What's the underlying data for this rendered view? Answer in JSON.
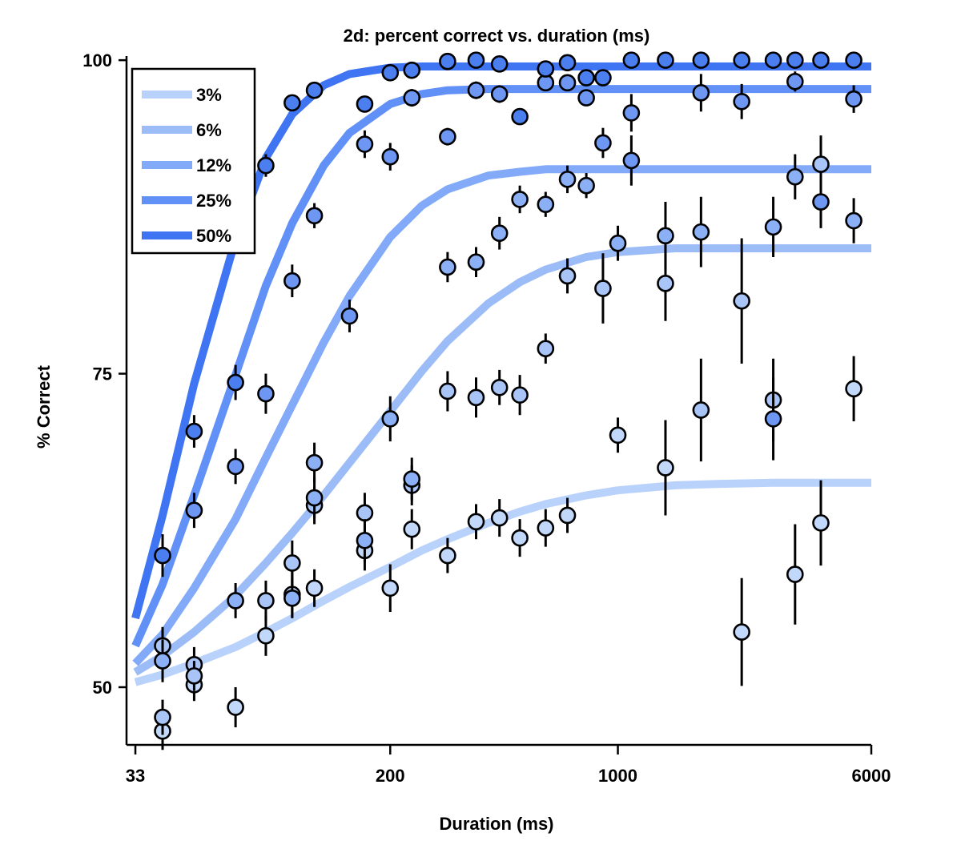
{
  "chart_data": {
    "type": "scatter",
    "title": "2d: percent correct vs. duration (ms)",
    "xlabel": "Duration (ms)",
    "ylabel": "% Correct",
    "x_scale": "log",
    "xlim": [
      31,
      6000
    ],
    "ylim": [
      45.4,
      100.2
    ],
    "x_ticks": [
      33,
      200,
      1000,
      6000
    ],
    "x_tick_labels": [
      "33",
      "200",
      "1000",
      "6000"
    ],
    "y_ticks": [
      50,
      75,
      100
    ],
    "y_tick_labels": [
      "50",
      "75",
      "100"
    ],
    "grid": false,
    "legend_position": "top-left",
    "series": [
      {
        "name": "3%",
        "color": "#c2d8fa",
        "fit_color": "#b9d2fb",
        "points": [
          {
            "x": 40,
            "y": 46.5,
            "err": 1.5
          },
          {
            "x": 50,
            "y": 50.2,
            "err": 1.3
          },
          {
            "x": 67,
            "y": 48.4,
            "err": 1.6
          },
          {
            "x": 83,
            "y": 54.1,
            "err": 1.6
          },
          {
            "x": 100,
            "y": 57.4,
            "err": 1.8
          },
          {
            "x": 117,
            "y": 57.9,
            "err": 1.5
          },
          {
            "x": 167,
            "y": 60.9,
            "err": 1.6
          },
          {
            "x": 200,
            "y": 57.9,
            "err": 1.9
          },
          {
            "x": 233,
            "y": 62.6,
            "err": 1.6
          },
          {
            "x": 300,
            "y": 60.5,
            "err": 1.4
          },
          {
            "x": 367,
            "y": 63.2,
            "err": 1.4
          },
          {
            "x": 433,
            "y": 63.5,
            "err": 1.5
          },
          {
            "x": 500,
            "y": 61.9,
            "err": 1.5
          },
          {
            "x": 600,
            "y": 62.7,
            "err": 1.5
          },
          {
            "x": 700,
            "y": 63.7,
            "err": 1.4
          },
          {
            "x": 1000,
            "y": 70.1,
            "err": 1.4
          },
          {
            "x": 1400,
            "y": 67.5,
            "err": 3.8
          },
          {
            "x": 2400,
            "y": 54.4,
            "err": 4.3
          },
          {
            "x": 3500,
            "y": 59.0,
            "err": 4.0
          },
          {
            "x": 4200,
            "y": 63.1,
            "err": 3.4
          },
          {
            "x": 5300,
            "y": 73.8,
            "err": 2.6
          }
        ],
        "fit": [
          {
            "x": 33,
            "y": 50.4
          },
          {
            "x": 40,
            "y": 51.0
          },
          {
            "x": 50,
            "y": 51.9
          },
          {
            "x": 67,
            "y": 53.2
          },
          {
            "x": 83,
            "y": 54.4
          },
          {
            "x": 100,
            "y": 55.5
          },
          {
            "x": 125,
            "y": 56.9
          },
          {
            "x": 150,
            "y": 58.0
          },
          {
            "x": 200,
            "y": 59.6
          },
          {
            "x": 250,
            "y": 60.9
          },
          {
            "x": 300,
            "y": 61.8
          },
          {
            "x": 400,
            "y": 63.1
          },
          {
            "x": 500,
            "y": 64.0
          },
          {
            "x": 600,
            "y": 64.6
          },
          {
            "x": 800,
            "y": 65.3
          },
          {
            "x": 1000,
            "y": 65.7
          },
          {
            "x": 1500,
            "y": 66.1
          },
          {
            "x": 2000,
            "y": 66.2
          },
          {
            "x": 3000,
            "y": 66.3
          },
          {
            "x": 4000,
            "y": 66.3
          },
          {
            "x": 6000,
            "y": 66.3
          }
        ]
      },
      {
        "name": "6%",
        "color": "#a9c4f7",
        "fit_color": "#9cbcf8",
        "points": [
          {
            "x": 40,
            "y": 47.6,
            "err": 1.4
          },
          {
            "x": 40,
            "y": 53.3,
            "err": 1.5
          },
          {
            "x": 50,
            "y": 51.8,
            "err": 1.4
          },
          {
            "x": 50,
            "y": 50.9,
            "err": 1.2
          },
          {
            "x": 83,
            "y": 56.9,
            "err": 1.6
          },
          {
            "x": 100,
            "y": 59.9,
            "err": 1.8
          },
          {
            "x": 117,
            "y": 64.5,
            "err": 1.5
          },
          {
            "x": 167,
            "y": 63.9,
            "err": 1.6
          },
          {
            "x": 233,
            "y": 66.1,
            "err": 1.6
          },
          {
            "x": 300,
            "y": 73.6,
            "err": 1.6
          },
          {
            "x": 367,
            "y": 73.1,
            "err": 1.6
          },
          {
            "x": 433,
            "y": 73.9,
            "err": 1.4
          },
          {
            "x": 500,
            "y": 73.3,
            "err": 1.6
          },
          {
            "x": 600,
            "y": 77.0,
            "err": 1.2
          },
          {
            "x": 700,
            "y": 82.8,
            "err": 1.4
          },
          {
            "x": 900,
            "y": 81.8,
            "err": 2.8
          },
          {
            "x": 1400,
            "y": 82.2,
            "err": 3.0
          },
          {
            "x": 1800,
            "y": 72.1,
            "err": 4.1
          },
          {
            "x": 2400,
            "y": 80.8,
            "err": 5.0
          },
          {
            "x": 3000,
            "y": 72.9,
            "err": 3.3
          },
          {
            "x": 4200,
            "y": 91.7,
            "err": 2.3
          }
        ],
        "fit": [
          {
            "x": 33,
            "y": 51.2
          },
          {
            "x": 40,
            "y": 52.5
          },
          {
            "x": 50,
            "y": 54.4
          },
          {
            "x": 67,
            "y": 57.3
          },
          {
            "x": 83,
            "y": 59.9
          },
          {
            "x": 100,
            "y": 62.3
          },
          {
            "x": 125,
            "y": 65.3
          },
          {
            "x": 150,
            "y": 67.9
          },
          {
            "x": 200,
            "y": 72.0
          },
          {
            "x": 250,
            "y": 75.2
          },
          {
            "x": 300,
            "y": 77.6
          },
          {
            "x": 400,
            "y": 80.6
          },
          {
            "x": 500,
            "y": 82.3
          },
          {
            "x": 600,
            "y": 83.3
          },
          {
            "x": 800,
            "y": 84.3
          },
          {
            "x": 1000,
            "y": 84.7
          },
          {
            "x": 1500,
            "y": 85.0
          },
          {
            "x": 2000,
            "y": 85.0
          },
          {
            "x": 3000,
            "y": 85.0
          },
          {
            "x": 4000,
            "y": 85.0
          },
          {
            "x": 6000,
            "y": 85.0
          }
        ]
      },
      {
        "name": "12%",
        "color": "#8cb0f5",
        "fit_color": "#82aaf8",
        "points": [
          {
            "x": 40,
            "y": 52.1,
            "err": 1.7
          },
          {
            "x": 67,
            "y": 56.9,
            "err": 1.4
          },
          {
            "x": 100,
            "y": 57.1,
            "err": 1.6
          },
          {
            "x": 117,
            "y": 65.1,
            "err": 1.6
          },
          {
            "x": 117,
            "y": 67.9,
            "err": 1.6
          },
          {
            "x": 167,
            "y": 61.7,
            "err": 1.7
          },
          {
            "x": 200,
            "y": 71.4,
            "err": 1.8
          },
          {
            "x": 233,
            "y": 66.6,
            "err": 1.7
          },
          {
            "x": 300,
            "y": 83.5,
            "err": 1.2
          },
          {
            "x": 367,
            "y": 83.9,
            "err": 1.2
          },
          {
            "x": 433,
            "y": 86.2,
            "err": 1.3
          },
          {
            "x": 500,
            "y": 88.9,
            "err": 1.1
          },
          {
            "x": 600,
            "y": 88.5,
            "err": 1.0
          },
          {
            "x": 700,
            "y": 90.5,
            "err": 1.1
          },
          {
            "x": 800,
            "y": 90.0,
            "err": 1.0
          },
          {
            "x": 1000,
            "y": 85.4,
            "err": 1.4
          },
          {
            "x": 1400,
            "y": 86.0,
            "err": 2.7
          },
          {
            "x": 1800,
            "y": 86.3,
            "err": 2.8
          },
          {
            "x": 3000,
            "y": 86.7,
            "err": 2.4
          },
          {
            "x": 3500,
            "y": 90.7,
            "err": 1.8
          },
          {
            "x": 5300,
            "y": 87.2,
            "err": 1.8
          }
        ],
        "fit": [
          {
            "x": 33,
            "y": 51.9
          },
          {
            "x": 40,
            "y": 54.2
          },
          {
            "x": 50,
            "y": 57.9
          },
          {
            "x": 67,
            "y": 63.4
          },
          {
            "x": 83,
            "y": 68.3
          },
          {
            "x": 100,
            "y": 72.5
          },
          {
            "x": 125,
            "y": 77.5
          },
          {
            "x": 150,
            "y": 81.2
          },
          {
            "x": 200,
            "y": 85.9
          },
          {
            "x": 250,
            "y": 88.4
          },
          {
            "x": 300,
            "y": 89.7
          },
          {
            "x": 400,
            "y": 90.8
          },
          {
            "x": 500,
            "y": 91.1
          },
          {
            "x": 600,
            "y": 91.3
          },
          {
            "x": 800,
            "y": 91.3
          },
          {
            "x": 1000,
            "y": 91.3
          },
          {
            "x": 1500,
            "y": 91.3
          },
          {
            "x": 2000,
            "y": 91.3
          },
          {
            "x": 3000,
            "y": 91.3
          },
          {
            "x": 4000,
            "y": 91.3
          },
          {
            "x": 6000,
            "y": 91.3
          }
        ]
      },
      {
        "name": "25%",
        "color": "#6d97f2",
        "fit_color": "#6190f7",
        "points": [
          {
            "x": 50,
            "y": 64.1,
            "err": 1.4
          },
          {
            "x": 67,
            "y": 67.6,
            "err": 1.4
          },
          {
            "x": 83,
            "y": 73.4,
            "err": 1.6
          },
          {
            "x": 100,
            "y": 82.4,
            "err": 1.3
          },
          {
            "x": 117,
            "y": 87.6,
            "err": 1.0
          },
          {
            "x": 150,
            "y": 79.6,
            "err": 1.3
          },
          {
            "x": 167,
            "y": 93.3,
            "err": 1.1
          },
          {
            "x": 200,
            "y": 92.3,
            "err": 1.1
          },
          {
            "x": 233,
            "y": 97.0,
            "err": 0.7
          },
          {
            "x": 300,
            "y": 93.9,
            "err": 0.7
          },
          {
            "x": 367,
            "y": 97.6,
            "err": 0.7
          },
          {
            "x": 433,
            "y": 97.3,
            "err": 0.7
          },
          {
            "x": 600,
            "y": 98.2,
            "err": 0.6
          },
          {
            "x": 700,
            "y": 98.2,
            "err": 0.6
          },
          {
            "x": 800,
            "y": 97.0,
            "err": 0.6
          },
          {
            "x": 900,
            "y": 93.4,
            "err": 1.2
          },
          {
            "x": 1100,
            "y": 95.8,
            "err": 1.5
          },
          {
            "x": 1100,
            "y": 92.0,
            "err": 2.0
          },
          {
            "x": 1800,
            "y": 97.4,
            "err": 1.5
          },
          {
            "x": 2400,
            "y": 96.7,
            "err": 1.4
          },
          {
            "x": 3000,
            "y": 71.4,
            "err": 3.3
          },
          {
            "x": 3500,
            "y": 98.3,
            "err": 0.8
          },
          {
            "x": 4200,
            "y": 88.7,
            "err": 2.1
          },
          {
            "x": 5300,
            "y": 96.9,
            "err": 1.1
          }
        ],
        "fit": [
          {
            "x": 33,
            "y": 53.3
          },
          {
            "x": 40,
            "y": 58.2
          },
          {
            "x": 50,
            "y": 65.3
          },
          {
            "x": 67,
            "y": 74.9
          },
          {
            "x": 83,
            "y": 82.0
          },
          {
            "x": 100,
            "y": 87.0
          },
          {
            "x": 125,
            "y": 91.6
          },
          {
            "x": 150,
            "y": 94.2
          },
          {
            "x": 200,
            "y": 96.5
          },
          {
            "x": 250,
            "y": 97.3
          },
          {
            "x": 300,
            "y": 97.6
          },
          {
            "x": 400,
            "y": 97.7
          },
          {
            "x": 500,
            "y": 97.7
          },
          {
            "x": 600,
            "y": 97.7
          },
          {
            "x": 800,
            "y": 97.7
          },
          {
            "x": 1000,
            "y": 97.7
          },
          {
            "x": 1500,
            "y": 97.7
          },
          {
            "x": 2000,
            "y": 97.7
          },
          {
            "x": 3000,
            "y": 97.7
          },
          {
            "x": 4000,
            "y": 97.7
          },
          {
            "x": 6000,
            "y": 97.7
          }
        ]
      },
      {
        "name": "50%",
        "color": "#4b7ff0",
        "fit_color": "#3f74f3",
        "points": [
          {
            "x": 40,
            "y": 60.5,
            "err": 1.7
          },
          {
            "x": 50,
            "y": 70.4,
            "err": 1.3
          },
          {
            "x": 67,
            "y": 74.3,
            "err": 1.4
          },
          {
            "x": 83,
            "y": 91.6,
            "err": 0.9
          },
          {
            "x": 100,
            "y": 96.6,
            "err": 0.6
          },
          {
            "x": 117,
            "y": 97.6,
            "err": 0.6
          },
          {
            "x": 167,
            "y": 96.5,
            "err": 0.6
          },
          {
            "x": 200,
            "y": 99.0,
            "err": 0.4
          },
          {
            "x": 233,
            "y": 99.2,
            "err": 0.4
          },
          {
            "x": 300,
            "y": 99.9,
            "err": 0.3
          },
          {
            "x": 367,
            "y": 100.0,
            "err": 0.3
          },
          {
            "x": 433,
            "y": 99.7,
            "err": 0.3
          },
          {
            "x": 500,
            "y": 95.5,
            "err": 0.6
          },
          {
            "x": 600,
            "y": 99.3,
            "err": 0.3
          },
          {
            "x": 700,
            "y": 99.8,
            "err": 0.3
          },
          {
            "x": 800,
            "y": 98.6,
            "err": 0.4
          },
          {
            "x": 900,
            "y": 98.6,
            "err": 0.4
          },
          {
            "x": 1100,
            "y": 100.0,
            "err": 0.2
          },
          {
            "x": 1400,
            "y": 100.0,
            "err": 0.2
          },
          {
            "x": 1800,
            "y": 100.0,
            "err": 0.2
          },
          {
            "x": 2400,
            "y": 100.0,
            "err": 0.2
          },
          {
            "x": 3000,
            "y": 100.0,
            "err": 0.2
          },
          {
            "x": 3500,
            "y": 100.0,
            "err": 0.2
          },
          {
            "x": 4200,
            "y": 100.0,
            "err": 0.2
          },
          {
            "x": 5300,
            "y": 100.0,
            "err": 0.2
          }
        ],
        "fit": [
          {
            "x": 33,
            "y": 55.5
          },
          {
            "x": 40,
            "y": 63.7
          },
          {
            "x": 50,
            "y": 74.2
          },
          {
            "x": 67,
            "y": 85.7
          },
          {
            "x": 83,
            "y": 92.2
          },
          {
            "x": 100,
            "y": 95.7
          },
          {
            "x": 125,
            "y": 98.0
          },
          {
            "x": 150,
            "y": 98.9
          },
          {
            "x": 200,
            "y": 99.4
          },
          {
            "x": 250,
            "y": 99.5
          },
          {
            "x": 300,
            "y": 99.5
          },
          {
            "x": 400,
            "y": 99.5
          },
          {
            "x": 500,
            "y": 99.5
          },
          {
            "x": 600,
            "y": 99.5
          },
          {
            "x": 800,
            "y": 99.5
          },
          {
            "x": 1000,
            "y": 99.5
          },
          {
            "x": 1500,
            "y": 99.5
          },
          {
            "x": 2000,
            "y": 99.5
          },
          {
            "x": 3000,
            "y": 99.5
          },
          {
            "x": 4000,
            "y": 99.5
          },
          {
            "x": 6000,
            "y": 99.5
          }
        ]
      }
    ]
  }
}
